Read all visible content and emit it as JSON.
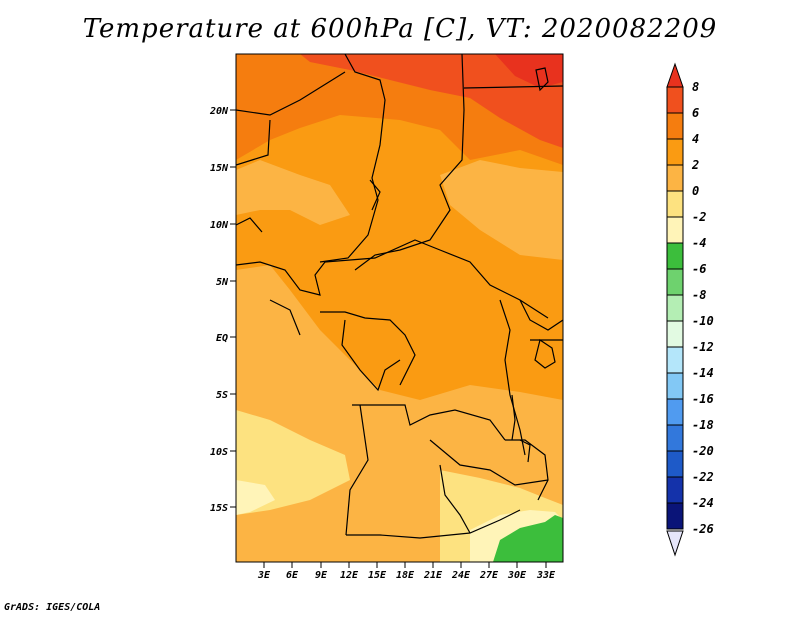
{
  "title": "Temperature at 600hPa [C], VT: 2020082209",
  "credit": "GrADS: IGES/COLA",
  "map": {
    "lat_ticks": [
      "20N",
      "15N",
      "10N",
      "5N",
      "EQ",
      "5S",
      "10S",
      "15S"
    ],
    "lon_ticks": [
      "3E",
      "6E",
      "9E",
      "12E",
      "15E",
      "18E",
      "21E",
      "24E",
      "27E",
      "30E",
      "33E"
    ]
  },
  "legend": {
    "levels": [
      "8",
      "6",
      "4",
      "2",
      "0",
      "-2",
      "-4",
      "-6",
      "-8",
      "-10",
      "-12",
      "-14",
      "-16",
      "-18",
      "-20",
      "-22",
      "-24",
      "-26"
    ],
    "colors": [
      "#e8321e",
      "#f0501e",
      "#f57d0f",
      "#fa9b12",
      "#fcb444",
      "#fde280",
      "#fff4b8",
      "#3cbe3c",
      "#6ed26e",
      "#b4eeb4",
      "#e2fae2",
      "#b4e6fa",
      "#82c8f5",
      "#509bf0",
      "#3278dc",
      "#1e5ac8",
      "#1432aa",
      "#0a1478",
      "#e6e6fa"
    ]
  }
}
